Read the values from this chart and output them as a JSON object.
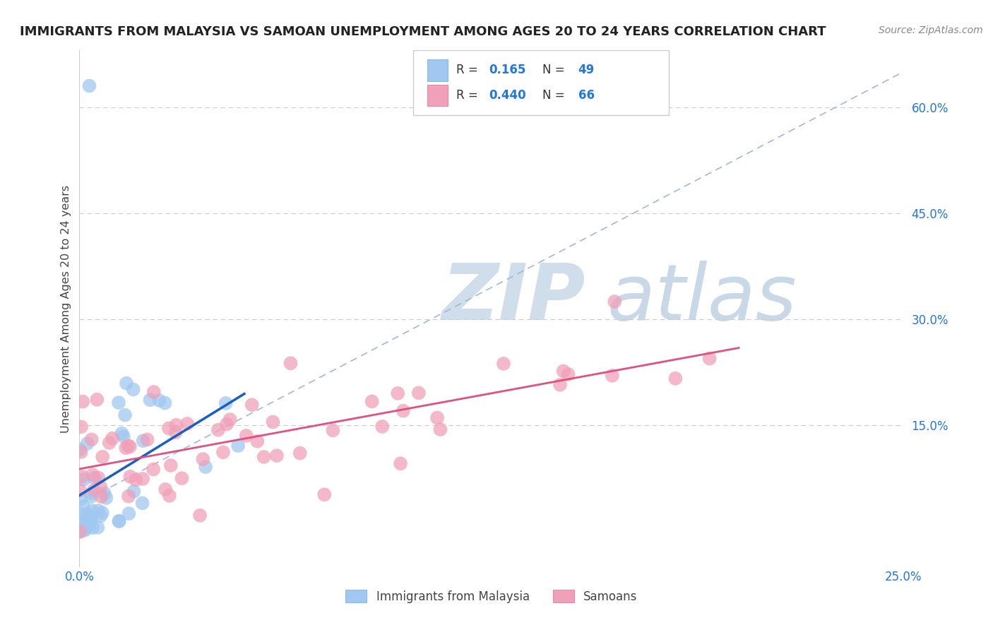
{
  "title": "IMMIGRANTS FROM MALAYSIA VS SAMOAN UNEMPLOYMENT AMONG AGES 20 TO 24 YEARS CORRELATION CHART",
  "source": "Source: ZipAtlas.com",
  "ylabel": "Unemployment Among Ages 20 to 24 years",
  "xlim": [
    0.0,
    0.25
  ],
  "ylim": [
    -0.05,
    0.68
  ],
  "yticks": [
    0.0,
    0.15,
    0.3,
    0.45,
    0.6
  ],
  "ytick_labels": [
    "",
    "15.0%",
    "30.0%",
    "45.0%",
    "60.0%"
  ],
  "r1": 0.165,
  "n1": 49,
  "r2": 0.44,
  "n2": 66,
  "color_malaysia": "#a0c8f0",
  "color_samoan": "#f0a0b8",
  "line_color_malaysia": "#1a5fbf",
  "line_color_samoan": "#e05080",
  "dash_color": "#a0b8d8",
  "watermark_zip": "ZIP",
  "watermark_atlas": "atlas",
  "background_color": "#ffffff",
  "title_fontsize": 13,
  "label_fontsize": 11.5,
  "tick_fontsize": 12,
  "legend_label1": "Immigrants from Malaysia",
  "legend_label2": "Samoans"
}
